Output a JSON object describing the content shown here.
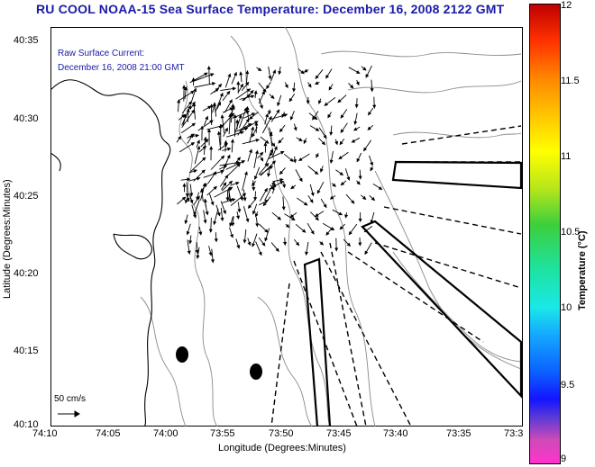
{
  "title": "RU COOL  NOAA-15  Sea Surface Temperature:  December 16, 2008 2122 GMT",
  "overlay": {
    "line1": "Raw Surface Current:",
    "line2": "December 16, 2008 21:00 GMT"
  },
  "axes": {
    "x_label": "Longitude (Degrees:Minutes)",
    "y_label": "Latitude (Degrees:Minutes)",
    "x_ticks": [
      "74:10",
      "74:05",
      "74:00",
      "73:55",
      "73:50",
      "73:45",
      "73:40",
      "73:35",
      "73:3"
    ],
    "y_ticks": [
      "40:35",
      "40:30",
      "40:25",
      "40:20",
      "40:15",
      "40:10"
    ]
  },
  "scale": {
    "label": "50 cm/s"
  },
  "colorbar": {
    "title": "Temperature (°C)",
    "ticks": [
      "12",
      "11.5",
      "11",
      "10.5",
      "10",
      "9.5",
      "9"
    ]
  },
  "colors": {
    "title": "#1a1aa8",
    "contour": "#8a8a8a",
    "coast": "#000000"
  }
}
